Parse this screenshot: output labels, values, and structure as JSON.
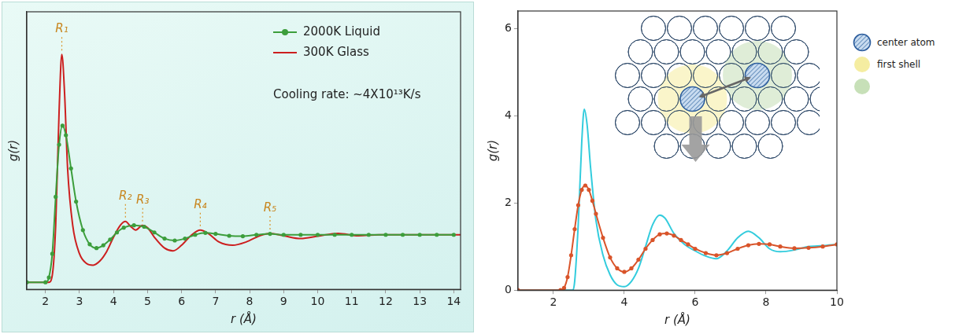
{
  "chart_data": [
    {
      "type": "line",
      "x_label": "r (Å)",
      "y_label": "g(r)",
      "xlim": [
        1.45,
        14.2
      ],
      "ylim": [
        -0.15,
        5.7
      ],
      "xticks": [
        2,
        3,
        4,
        5,
        6,
        7,
        8,
        9,
        10,
        11,
        12,
        13,
        14
      ],
      "tick_labels": "x",
      "grid": false,
      "legend": "upper right",
      "series": [
        {
          "name": "2000K Liquid",
          "color": "#3c9e3c",
          "marker": "circle",
          "line_style": "solid",
          "x": [
            1.45,
            2.0,
            2.1,
            2.2,
            2.3,
            2.4,
            2.5,
            2.6,
            2.75,
            2.9,
            3.1,
            3.3,
            3.5,
            3.7,
            3.9,
            4.1,
            4.3,
            4.6,
            4.9,
            5.2,
            5.5,
            5.8,
            6.1,
            6.4,
            6.7,
            7.0,
            7.4,
            7.8,
            8.2,
            8.6,
            9.0,
            9.5,
            10.0,
            10.5,
            11.0,
            11.5,
            12.0,
            12.5,
            13.0,
            13.5,
            14.0
          ],
          "values": [
            0,
            0,
            0.1,
            0.6,
            1.8,
            2.9,
            3.3,
            3.1,
            2.4,
            1.7,
            1.1,
            0.8,
            0.72,
            0.78,
            0.9,
            1.05,
            1.15,
            1.2,
            1.17,
            1.05,
            0.92,
            0.88,
            0.92,
            1.0,
            1.04,
            1.02,
            0.98,
            0.97,
            1.0,
            1.02,
            1.0,
            1.0,
            1.0,
            1.0,
            1.0,
            1.0,
            1.0,
            1.0,
            1.0,
            1.0,
            1.0
          ]
        },
        {
          "name": "300K Glass",
          "color": "#cc1f1f",
          "marker": "none",
          "line_style": "solid",
          "x": [
            1.45,
            2.1,
            2.2,
            2.3,
            2.4,
            2.48,
            2.56,
            2.65,
            2.8,
            3.0,
            3.2,
            3.4,
            3.6,
            3.8,
            4.0,
            4.2,
            4.35,
            4.5,
            4.65,
            4.85,
            5.0,
            5.2,
            5.5,
            5.75,
            6.0,
            6.3,
            6.55,
            6.8,
            7.1,
            7.5,
            7.9,
            8.3,
            8.6,
            9.0,
            9.5,
            10.0,
            10.6,
            11.2,
            11.8,
            12.4,
            13.0,
            14.2
          ],
          "values": [
            0,
            0,
            0.15,
            1.2,
            3.6,
            4.8,
            4.0,
            2.4,
            1.2,
            0.6,
            0.4,
            0.36,
            0.45,
            0.65,
            0.95,
            1.2,
            1.28,
            1.18,
            1.1,
            1.2,
            1.15,
            0.95,
            0.72,
            0.66,
            0.78,
            1.0,
            1.1,
            1.02,
            0.85,
            0.78,
            0.85,
            0.98,
            1.03,
            0.98,
            0.92,
            0.97,
            1.03,
            0.98,
            1.0,
            1.0,
            1.0,
            1.0
          ]
        }
      ],
      "annotations": [
        {
          "text": "Cooling rate: ~4X10¹³K/s"
        },
        {
          "text": "R₁",
          "x": 2.48
        },
        {
          "text": "R₂",
          "x": 4.35
        },
        {
          "text": "R₃",
          "x": 4.85
        },
        {
          "text": "R₄",
          "x": 6.55
        },
        {
          "text": "R₅",
          "x": 8.6
        }
      ]
    },
    {
      "type": "line",
      "x_label": "r (Å)",
      "y_label": "g(r)",
      "xlim": [
        1,
        10
      ],
      "ylim": [
        0,
        6.4
      ],
      "xticks": [
        2,
        4,
        6,
        8,
        10
      ],
      "yticks": [
        0,
        2,
        4,
        6
      ],
      "grid": false,
      "series": [
        {
          "color": "#d9542a",
          "marker": "circle",
          "line_style": "solid",
          "x": [
            1,
            2.2,
            2.3,
            2.4,
            2.5,
            2.6,
            2.7,
            2.8,
            2.9,
            3.0,
            3.1,
            3.2,
            3.4,
            3.6,
            3.8,
            4.0,
            4.2,
            4.4,
            4.6,
            4.8,
            5.0,
            5.2,
            5.4,
            5.6,
            5.8,
            6.0,
            6.3,
            6.6,
            6.9,
            7.2,
            7.5,
            7.8,
            8.1,
            8.4,
            8.8,
            9.2,
            9.6,
            10
          ],
          "values": [
            0,
            0,
            0.05,
            0.3,
            0.8,
            1.4,
            1.95,
            2.3,
            2.4,
            2.3,
            2.05,
            1.75,
            1.2,
            0.75,
            0.5,
            0.42,
            0.5,
            0.7,
            0.95,
            1.15,
            1.28,
            1.3,
            1.25,
            1.15,
            1.05,
            0.95,
            0.85,
            0.8,
            0.85,
            0.95,
            1.03,
            1.06,
            1.05,
            1.0,
            0.96,
            0.97,
            1.0,
            1.05
          ]
        },
        {
          "color": "#33ccdd",
          "marker": "none",
          "line_style": "solid",
          "x": [
            1,
            2.55,
            2.6,
            2.7,
            2.8,
            2.87,
            2.95,
            3.05,
            3.2,
            3.4,
            3.6,
            3.8,
            4.0,
            4.2,
            4.4,
            4.6,
            4.8,
            5.0,
            5.15,
            5.4,
            5.7,
            6.0,
            6.3,
            6.6,
            6.9,
            7.2,
            7.5,
            7.8,
            8.1,
            8.4,
            8.8,
            9.2,
            9.6,
            10
          ],
          "values": [
            0,
            0,
            0.2,
            1.5,
            3.4,
            4.15,
            3.8,
            2.8,
            1.6,
            0.8,
            0.35,
            0.12,
            0.08,
            0.2,
            0.5,
            1.0,
            1.5,
            1.72,
            1.65,
            1.3,
            1.05,
            0.9,
            0.78,
            0.72,
            0.9,
            1.2,
            1.35,
            1.2,
            0.95,
            0.88,
            0.92,
            1.0,
            1.02,
            1.05
          ]
        }
      ],
      "annotations": [
        {
          "text": "center atom"
        },
        {
          "text": "first shell"
        }
      ]
    }
  ]
}
